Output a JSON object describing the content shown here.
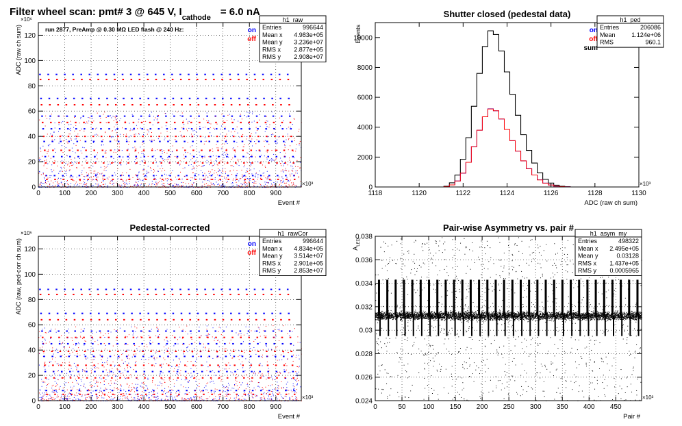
{
  "page_title": {
    "main": "Filter wheel scan: pmt#   3 @   645 V, I",
    "subscript": "cathode",
    "suffix": "= 6.0 nA"
  },
  "colors": {
    "on": "#0000ff",
    "off": "#ff0000",
    "sum": "#000000",
    "line": "#0000ff",
    "grid": "#000000"
  },
  "chart_data": [
    {
      "id": "raw",
      "type": "scatter",
      "title": "",
      "ylabel": "ADC (raw ch sum)",
      "xlabel": "Event #",
      "x_exponent": "×10³",
      "y_exponent": "×10⁶",
      "xlim": [
        0,
        996.644
      ],
      "ylim": [
        0,
        130
      ],
      "x_ticks": [
        0,
        100,
        200,
        300,
        400,
        500,
        600,
        700,
        800,
        900
      ],
      "y_ticks": [
        0,
        20,
        40,
        60,
        80,
        100,
        120
      ],
      "grid": true,
      "annotation": "run 2877, PreAmp @ 0.30 MΩ   LED flash @  240 Hz:",
      "legend": [
        "on",
        "off"
      ],
      "legend_position": "top-right",
      "stats": {
        "name": "h1_raw",
        "rows": [
          [
            "Entries",
            "996644"
          ],
          [
            "Mean x",
            "4.983e+05"
          ],
          [
            "Mean y",
            "3.236e+07"
          ],
          [
            "RMS x",
            "2.877e+05"
          ],
          [
            "RMS y",
            "2.908e+07"
          ]
        ]
      },
      "cycle_period": 31.3,
      "levels_on": [
        89,
        70,
        56,
        46,
        36,
        24,
        9
      ],
      "levels_off": [
        85,
        65,
        51,
        40,
        29,
        19,
        6
      ]
    },
    {
      "id": "ped",
      "type": "line",
      "title": "Shutter closed (pedestal data)",
      "ylabel": "Events",
      "xlabel": "ADC (raw ch sum)",
      "x_exponent": "×10³",
      "xlim": [
        1118,
        1130
      ],
      "ylim": [
        0,
        11000
      ],
      "x_ticks": [
        1118,
        1120,
        1122,
        1124,
        1126,
        1128,
        1130
      ],
      "y_ticks": [
        0,
        2000,
        4000,
        6000,
        8000,
        10000
      ],
      "grid": false,
      "legend": [
        "on",
        "off",
        "sum"
      ],
      "legend_position": "top-right",
      "stats": {
        "name": "h1_ped",
        "rows": [
          [
            "Entries",
            "206086"
          ],
          [
            "Mean",
            "1.124e+06"
          ],
          [
            "RMS",
            "960.1"
          ]
        ]
      },
      "x": [
        1121.25,
        1121.5,
        1121.75,
        1122.0,
        1122.25,
        1122.5,
        1122.75,
        1123.0,
        1123.25,
        1123.5,
        1123.75,
        1124.0,
        1124.25,
        1124.5,
        1124.75,
        1125.0,
        1125.25,
        1125.5,
        1125.75,
        1126.0,
        1126.25,
        1126.5,
        1126.75,
        1127.0
      ],
      "series": [
        {
          "name": "sum",
          "values": [
            50,
            280,
            800,
            1850,
            3300,
            5400,
            7600,
            9400,
            10450,
            10200,
            9100,
            7700,
            6200,
            4800,
            3500,
            2450,
            1600,
            950,
            520,
            260,
            120,
            50,
            20,
            0
          ]
        },
        {
          "name": "on",
          "values": [
            25,
            140,
            400,
            920,
            1650,
            2700,
            3800,
            4700,
            5230,
            5100,
            4550,
            3850,
            3100,
            2400,
            1750,
            1230,
            800,
            480,
            260,
            130,
            60,
            25,
            10,
            0
          ]
        },
        {
          "name": "off",
          "values": [
            25,
            140,
            400,
            930,
            1650,
            2700,
            3800,
            4700,
            5220,
            5100,
            4550,
            3850,
            3100,
            2400,
            1750,
            1220,
            800,
            470,
            260,
            130,
            60,
            25,
            10,
            0
          ]
        }
      ]
    },
    {
      "id": "rawcor",
      "type": "scatter",
      "title": "Pedestal-corrected",
      "ylabel": "ADC (raw, ped-corr ch sum)",
      "xlabel": "Event #",
      "x_exponent": "×10³",
      "y_exponent": "×10⁶",
      "xlim": [
        0,
        996.644
      ],
      "ylim": [
        0,
        130
      ],
      "x_ticks": [
        0,
        100,
        200,
        300,
        400,
        500,
        600,
        700,
        800,
        900
      ],
      "y_ticks": [
        0,
        20,
        40,
        60,
        80,
        100,
        120
      ],
      "grid": true,
      "legend": [
        "on",
        "off"
      ],
      "legend_position": "top-right",
      "stats": {
        "name": "h1_rawCor",
        "rows": [
          [
            "Entries",
            "996644"
          ],
          [
            "Mean x",
            "4.834e+05"
          ],
          [
            "Mean y",
            "3.514e+07"
          ],
          [
            "RMS x",
            "2.901e+05"
          ],
          [
            "RMS y",
            "2.853e+07"
          ]
        ]
      },
      "cycle_period": 31.3,
      "levels_on": [
        88,
        69,
        55,
        45,
        35,
        23,
        8
      ],
      "levels_off": [
        84,
        64,
        50,
        39,
        28,
        18,
        5
      ]
    },
    {
      "id": "asym",
      "type": "scatter",
      "title": "Pair-wise Asymmetry vs. pair #",
      "ylabel": "A",
      "ylabel_subscript": "LED",
      "xlabel": "Pair #",
      "x_exponent": "×10³",
      "xlim": [
        0,
        498.322
      ],
      "ylim": [
        0.024,
        0.038
      ],
      "x_ticks": [
        0,
        50,
        100,
        150,
        200,
        250,
        300,
        350,
        400,
        450
      ],
      "y_ticks": [
        0.024,
        0.026,
        0.028,
        0.03,
        0.032,
        0.034,
        0.036,
        0.038
      ],
      "grid": true,
      "stats": {
        "name": "h1_asym_my",
        "rows": [
          [
            "Entries",
            "498322"
          ],
          [
            "Mean x",
            "2.495e+05"
          ],
          [
            "Mean y",
            "0.03128"
          ],
          [
            "RMS x",
            "1.437e+05"
          ],
          [
            "RMS y",
            "0.0005965"
          ]
        ]
      },
      "band_center": 0.03125,
      "band_halfwidth": 0.0005,
      "spike_period": 15.6,
      "spike_top": 0.0343,
      "spike_bottom": 0.0295
    }
  ]
}
